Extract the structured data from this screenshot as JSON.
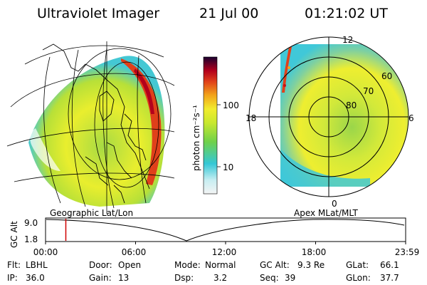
{
  "header": {
    "instrument": "Ultraviolet Imager",
    "date": "21 Jul 00",
    "time": "01:21:02 UT"
  },
  "colorbar": {
    "unit_label": "photon cm⁻²s⁻¹",
    "ticks": [
      "100",
      "10"
    ]
  },
  "polar_plot": {
    "mlt_labels": {
      "top": "12",
      "left": "18",
      "right": "6",
      "bottom": "0"
    },
    "lat_labels": [
      "60",
      "70",
      "80"
    ]
  },
  "timeline": {
    "ylabel": "GC Alt",
    "y_ticks": [
      "9.0",
      "1.8"
    ],
    "left_title": "Geographic Lat/Lon",
    "right_title": "Apex MLat/MLT",
    "x_ticks": [
      "00:00",
      "06:00",
      "12:00",
      "18:00",
      "23:59"
    ],
    "current_time_fraction": 0.0563
  },
  "info": {
    "row1": [
      {
        "label": "Flt:",
        "value": "LBHL"
      },
      {
        "label": "Door:",
        "value": "Open"
      },
      {
        "label": "Mode:",
        "value": "Normal"
      },
      {
        "label": "GC Alt:",
        "value": "9.3 Re"
      },
      {
        "label": "GLat:",
        "value": "66.1"
      }
    ],
    "row2": [
      {
        "label": "IP:",
        "value": "36.0"
      },
      {
        "label": "Gain:",
        "value": "13"
      },
      {
        "label": "Dsp:",
        "value": "3.2"
      },
      {
        "label": "Seq:",
        "value": "39"
      },
      {
        "label": "GLon:",
        "value": "37.7"
      }
    ]
  },
  "colors": {
    "background": "#ffffff",
    "scale": [
      "#f2f2f2",
      "#34c7d6",
      "#7ad334",
      "#e3ec2e",
      "#f2a41a",
      "#c8101a",
      "#2a0033"
    ]
  }
}
